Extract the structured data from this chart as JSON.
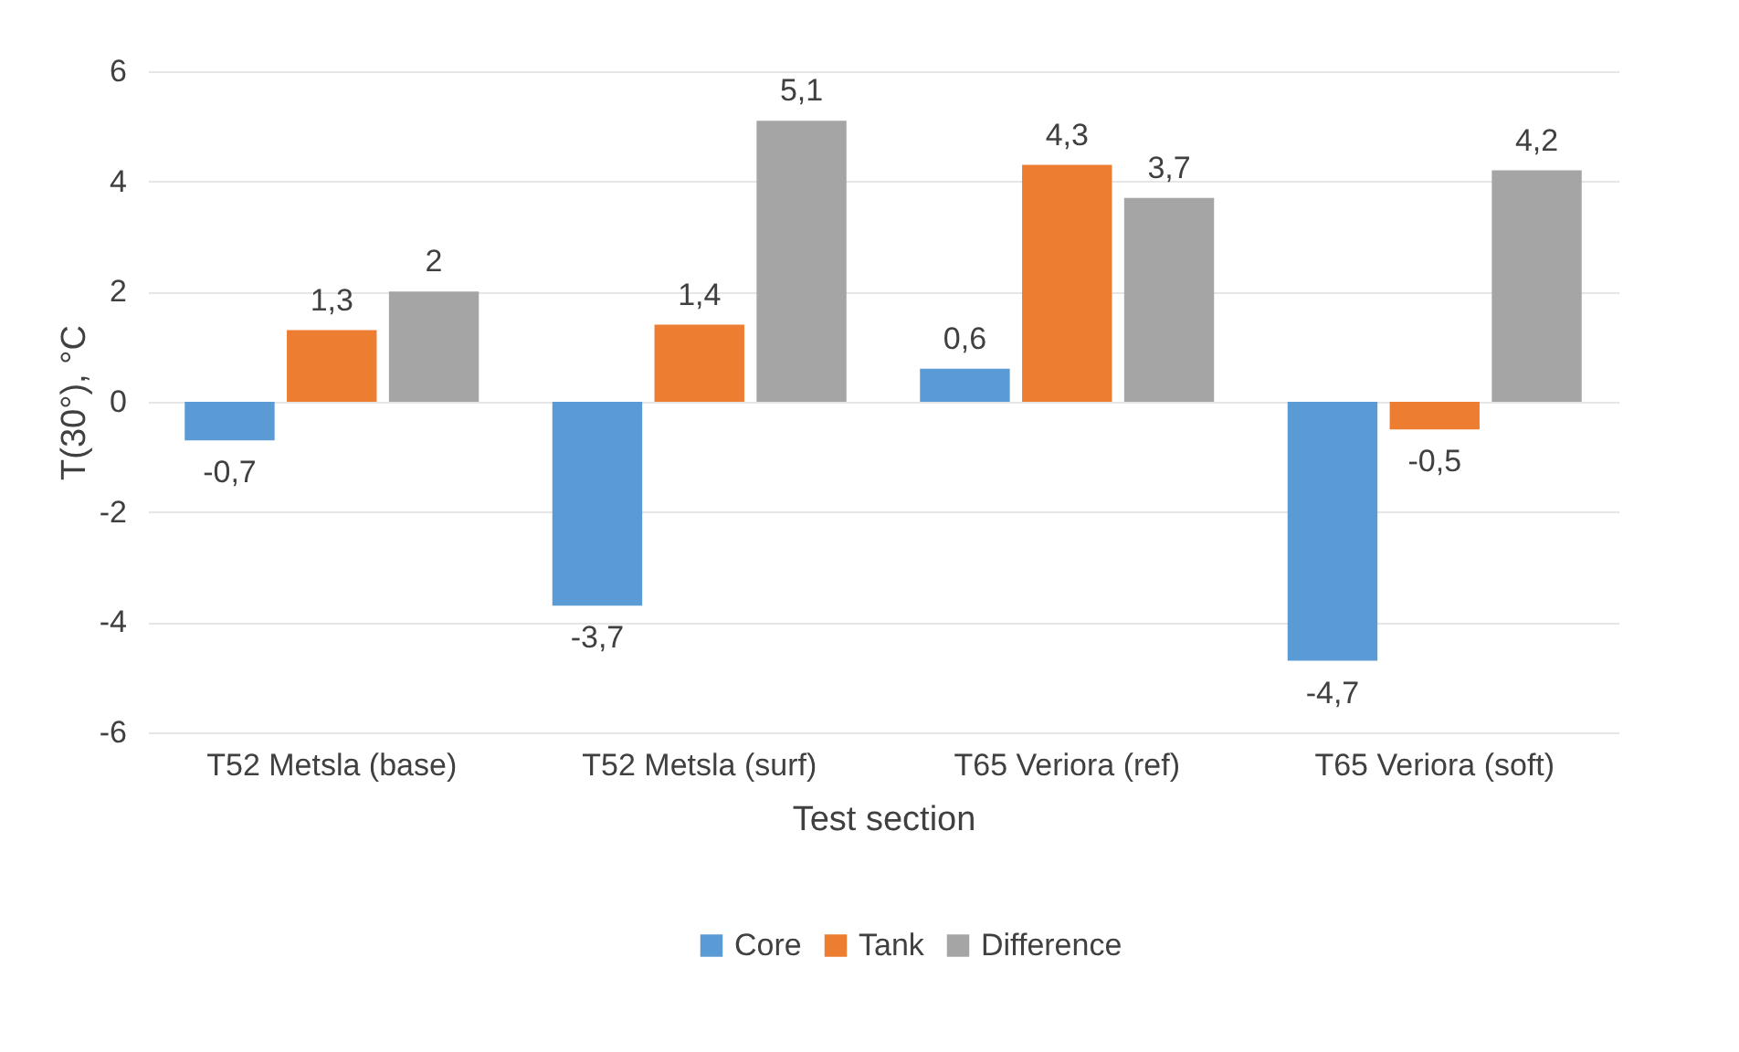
{
  "chart_data": {
    "type": "bar",
    "xlabel": "Test section",
    "ylabel": "T(30°), °C",
    "categories": [
      "T52 Metsla (base)",
      "T52 Metsla (surf)",
      "T65 Veriora (ref)",
      "T65 Veriora (soft)"
    ],
    "series": [
      {
        "name": "Core",
        "color": "#5b9bd5",
        "values": [
          -0.7,
          -3.7,
          0.6,
          -4.7
        ],
        "value_labels": [
          "-0,7",
          "-3,7",
          "0,6",
          "-4,7"
        ]
      },
      {
        "name": "Tank",
        "color": "#ed7d31",
        "values": [
          1.3,
          1.4,
          4.3,
          -0.5
        ],
        "value_labels": [
          "1,3",
          "1,4",
          "4,3",
          "-0,5"
        ]
      },
      {
        "name": "Difference",
        "color": "#a5a5a5",
        "values": [
          2,
          5.1,
          3.7,
          4.2
        ],
        "value_labels": [
          "2",
          "5,1",
          "3,7",
          "4,2"
        ]
      }
    ],
    "ylim": [
      -6,
      6
    ],
    "yticks": [
      -6,
      -4,
      -2,
      0,
      2,
      4,
      6
    ],
    "grid": "y",
    "legend": "bottom"
  }
}
